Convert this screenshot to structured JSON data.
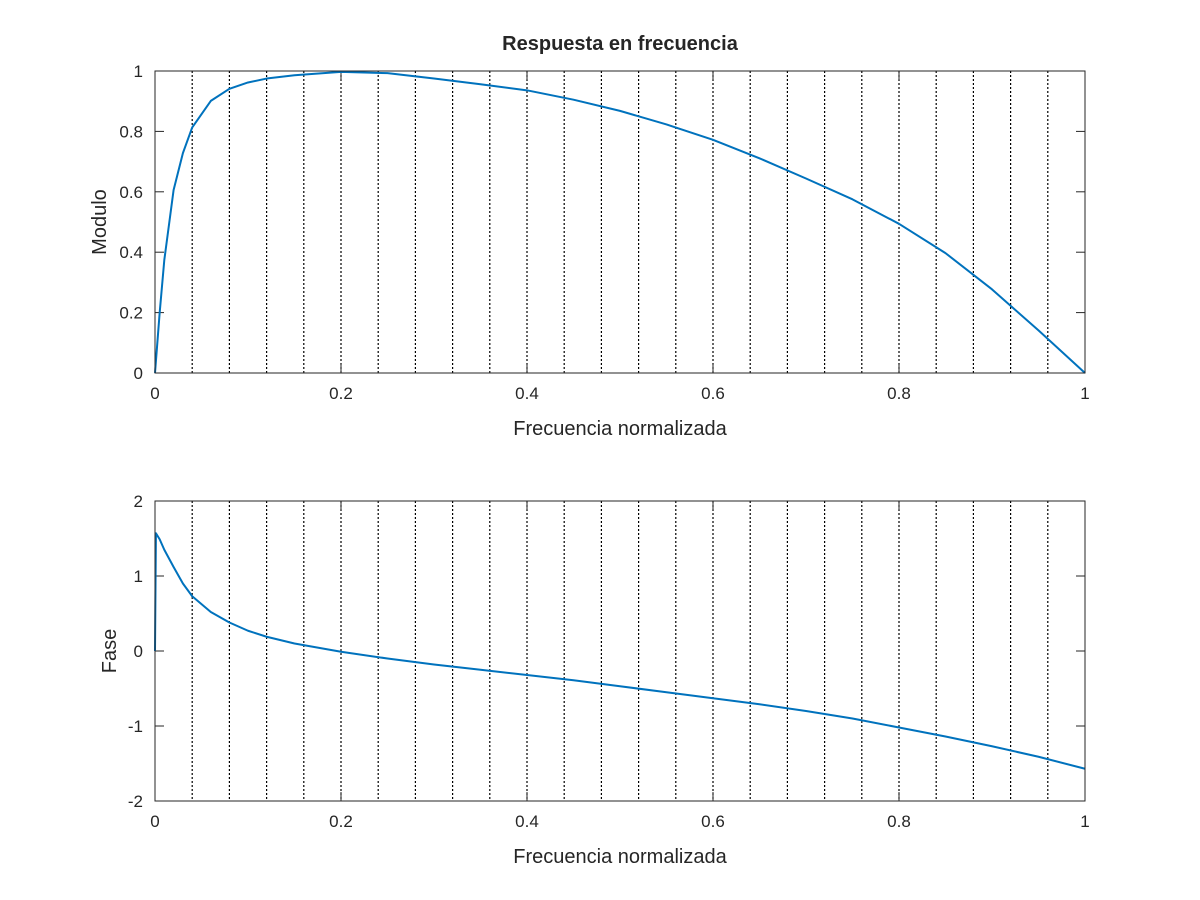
{
  "figure": {
    "title": "Respuesta en frecuencia"
  },
  "colors": {
    "line": "#0072BD",
    "axes": "#262626",
    "grid": "#000000",
    "background": "#ffffff"
  },
  "chart_data": [
    {
      "type": "line",
      "title": "Respuesta en frecuencia",
      "xlabel": "Frecuencia normalizada",
      "ylabel": "Modulo",
      "xlim": [
        0,
        1
      ],
      "ylim": [
        0,
        1
      ],
      "xticks": [
        "0",
        "0.2",
        "0.4",
        "0.6",
        "0.8",
        "1"
      ],
      "yticks": [
        "0",
        "0.2",
        "0.4",
        "0.6",
        "0.8",
        "1"
      ],
      "grid": "vertical dotted lines every 0.04",
      "series": [
        {
          "x": [
            0,
            0.005,
            0.01,
            0.02,
            0.03,
            0.04,
            0.06,
            0.08,
            0.1,
            0.12,
            0.15,
            0.2,
            0.25,
            0.3,
            0.35,
            0.4,
            0.45,
            0.5,
            0.55,
            0.6,
            0.65,
            0.7,
            0.75,
            0.8,
            0.85,
            0.9,
            0.95,
            1.0
          ],
          "y": [
            0,
            0.199,
            0.374,
            0.606,
            0.728,
            0.813,
            0.901,
            0.941,
            0.962,
            0.975,
            0.986,
            0.997,
            0.993,
            0.975,
            0.956,
            0.936,
            0.905,
            0.868,
            0.823,
            0.772,
            0.711,
            0.644,
            0.575,
            0.494,
            0.397,
            0.277,
            0.141,
            0
          ]
        }
      ]
    },
    {
      "type": "line",
      "title": "",
      "xlabel": "Frecuencia normalizada",
      "ylabel": "Fase",
      "xlim": [
        0,
        1
      ],
      "ylim": [
        -2,
        2
      ],
      "xticks": [
        "0",
        "0.2",
        "0.4",
        "0.6",
        "0.8",
        "1"
      ],
      "yticks": [
        "-2",
        "-1",
        "0",
        "1",
        "2"
      ],
      "grid": "vertical dotted lines every 0.04",
      "series": [
        {
          "x": [
            0,
            0.001,
            0.005,
            0.01,
            0.02,
            0.03,
            0.04,
            0.06,
            0.08,
            0.1,
            0.12,
            0.15,
            0.2,
            0.25,
            0.3,
            0.35,
            0.4,
            0.45,
            0.5,
            0.55,
            0.6,
            0.65,
            0.7,
            0.75,
            0.8,
            0.85,
            0.9,
            0.95,
            1.0
          ],
          "y": [
            0,
            1.57,
            1.49,
            1.35,
            1.12,
            0.9,
            0.73,
            0.52,
            0.38,
            0.27,
            0.19,
            0.1,
            -0.01,
            -0.1,
            -0.18,
            -0.25,
            -0.32,
            -0.39,
            -0.47,
            -0.55,
            -0.63,
            -0.71,
            -0.8,
            -0.9,
            -1.02,
            -1.14,
            -1.27,
            -1.41,
            -1.57
          ]
        }
      ]
    }
  ]
}
